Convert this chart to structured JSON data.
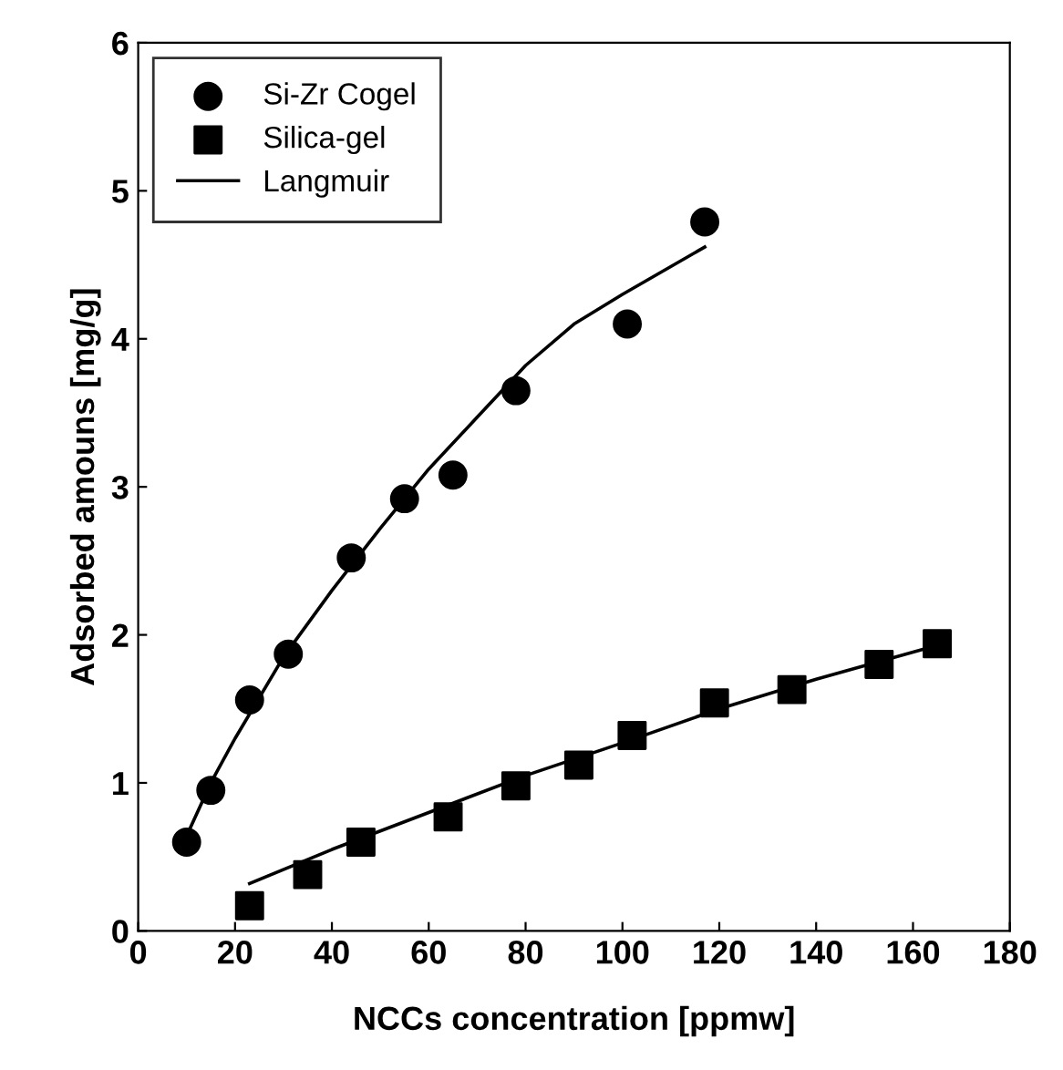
{
  "chart_data": {
    "type": "scatter",
    "xlabel": "NCCs concentration [ppmw]",
    "ylabel": "Adsorbed amouns [mg/g]",
    "xlim": [
      0,
      180
    ],
    "xticks": [
      0,
      20,
      40,
      60,
      80,
      100,
      120,
      140,
      160,
      180
    ],
    "ylim": [
      0,
      6
    ],
    "yticks": [
      0,
      1,
      2,
      3,
      4,
      5,
      6
    ],
    "legend": "top left",
    "grid": false,
    "series": [
      {
        "name": "Si-Zr Cogel",
        "color": "#000000",
        "marker": "circle",
        "x": [
          10,
          15,
          23,
          31,
          44,
          55,
          65,
          78,
          101,
          117
        ],
        "values": [
          0.6,
          0.95,
          1.56,
          1.87,
          2.52,
          2.92,
          3.08,
          3.65,
          4.1,
          4.79
        ]
      },
      {
        "name": "Silica-gel",
        "color": "#000000",
        "marker": "square",
        "x": [
          23,
          35,
          46,
          64,
          78,
          91,
          102,
          119,
          135,
          153,
          165
        ],
        "values": [
          0.17,
          0.38,
          0.6,
          0.77,
          0.98,
          1.12,
          1.32,
          1.54,
          1.63,
          1.8,
          1.94
        ]
      },
      {
        "name": "Langmuir",
        "type": "line",
        "color": "#000000",
        "marker": "none",
        "line_style": "solid",
        "x": [
          9,
          15,
          20,
          30,
          40,
          50,
          60,
          70,
          80,
          90,
          100,
          117
        ],
        "values": [
          0.57,
          1.0,
          1.3,
          1.85,
          2.3,
          2.72,
          3.12,
          3.47,
          3.82,
          4.1,
          4.3,
          4.62
        ]
      },
      {
        "type": "line",
        "color": "#000000",
        "marker": "none",
        "line_style": "solid",
        "x": [
          23,
          40,
          60,
          80,
          100,
          120,
          140,
          165
        ],
        "values": [
          0.32,
          0.55,
          0.8,
          1.05,
          1.27,
          1.5,
          1.7,
          1.93
        ]
      }
    ]
  }
}
